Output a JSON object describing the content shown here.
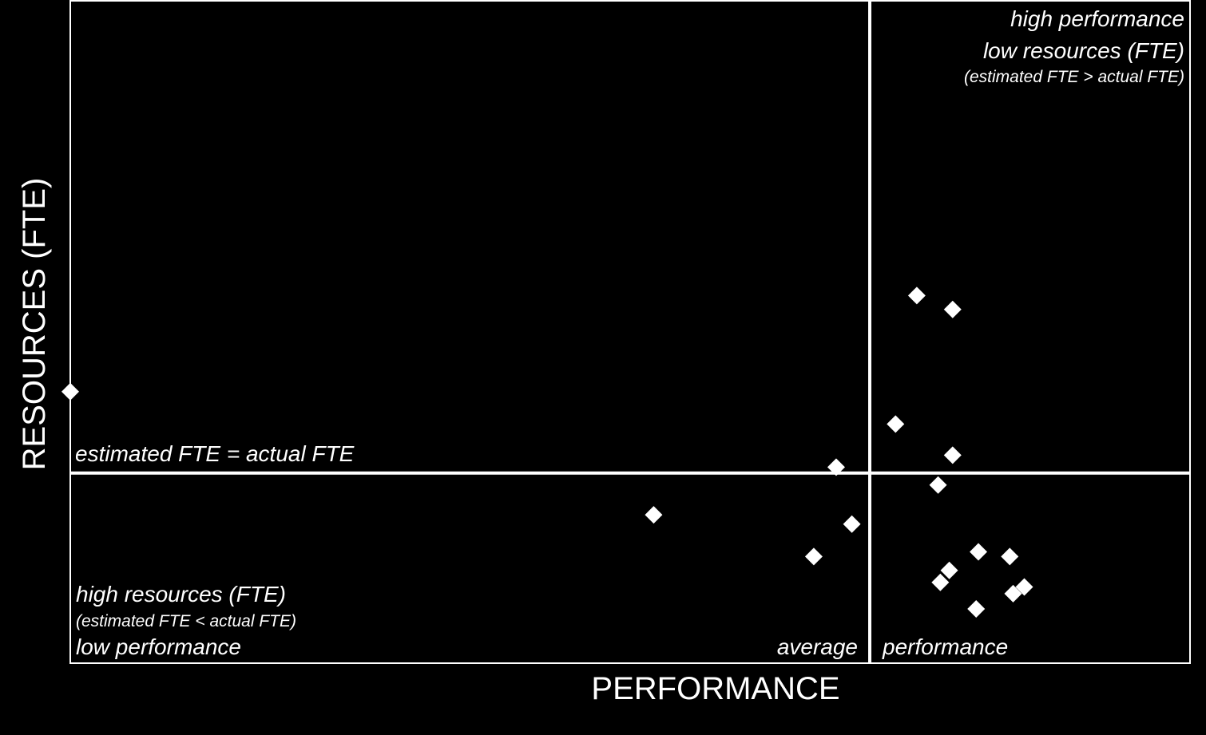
{
  "chart_data": {
    "type": "scatter",
    "xlabel": "PERFORMANCE",
    "ylabel": "RESOURCES (FTE)",
    "xlim": [
      0,
      100
    ],
    "ylim": [
      0,
      100
    ],
    "x_reference": 71.4,
    "y_reference": 28.7,
    "marker": "diamond",
    "marker_color": "#ffffff",
    "background_color": "#000000",
    "grid": false,
    "points": [
      {
        "x": 0.0,
        "y": 41.0
      },
      {
        "x": 52.1,
        "y": 22.4
      },
      {
        "x": 68.4,
        "y": 29.6
      },
      {
        "x": 66.4,
        "y": 16.1
      },
      {
        "x": 69.8,
        "y": 21.0
      },
      {
        "x": 75.6,
        "y": 55.5
      },
      {
        "x": 78.8,
        "y": 53.4
      },
      {
        "x": 73.7,
        "y": 36.1
      },
      {
        "x": 78.8,
        "y": 31.4
      },
      {
        "x": 77.5,
        "y": 26.9
      },
      {
        "x": 81.1,
        "y": 16.8
      },
      {
        "x": 83.9,
        "y": 16.1
      },
      {
        "x": 78.5,
        "y": 14.0
      },
      {
        "x": 77.7,
        "y": 12.2
      },
      {
        "x": 80.9,
        "y": 8.2
      },
      {
        "x": 84.2,
        "y": 10.5
      },
      {
        "x": 85.2,
        "y": 11.5
      }
    ],
    "annotations": {
      "top_right_line1": "high performance",
      "top_right_line2": "low resources (FTE)",
      "top_right_line3": "(estimated FTE > actual FTE)",
      "reference_line_label": "estimated FTE = actual FTE",
      "bottom_left_line1": "high resources (FTE)",
      "bottom_left_line2": "(estimated FTE < actual FTE)",
      "bottom_left_line3": "low performance",
      "bottom_average": "average",
      "bottom_performance": "performance"
    }
  }
}
